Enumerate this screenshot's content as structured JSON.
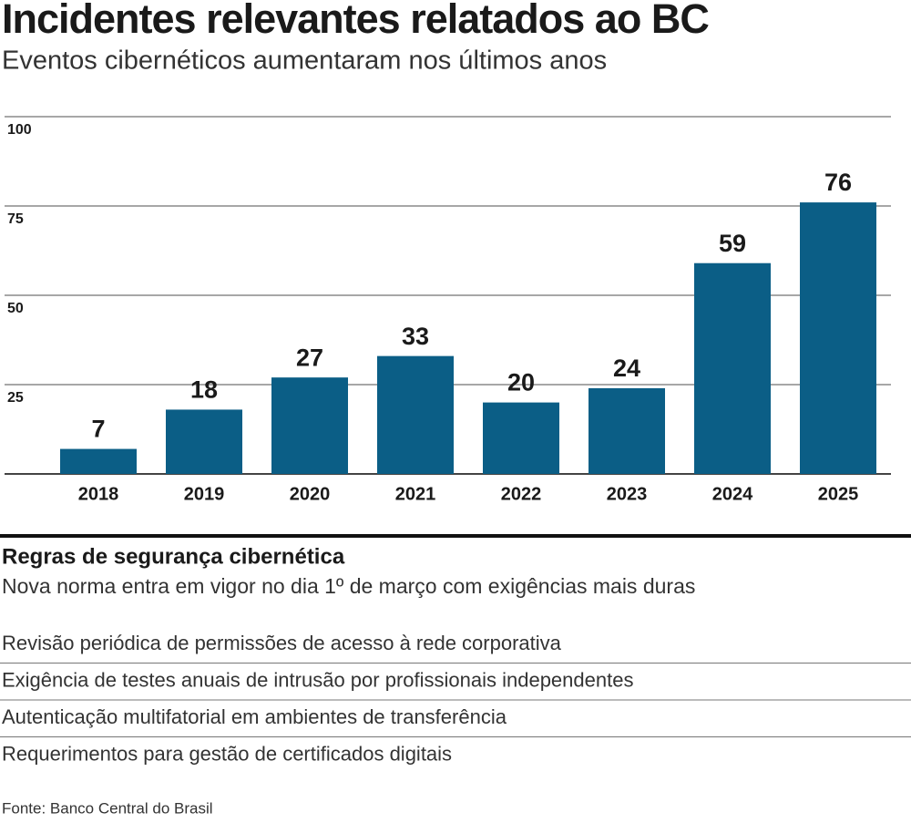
{
  "chart_data": {
    "type": "bar",
    "title": "Incidentes relevantes relatados ao BC",
    "subtitle": "Eventos cibernéticos aumentaram nos últimos anos",
    "categories": [
      "2018",
      "2019",
      "2020",
      "2021",
      "2022",
      "2023",
      "2024",
      "2025"
    ],
    "values": [
      7,
      18,
      27,
      33,
      20,
      24,
      59,
      76
    ],
    "color": "#0b5e86",
    "ylim": [
      0,
      100
    ],
    "yticks": [
      25,
      50,
      75,
      100
    ],
    "grid": true
  },
  "rules": {
    "title": "Regras de segurança cibernética",
    "subtitle": "Nova norma entra em vigor no dia 1º de março com exigências mais duras",
    "items": [
      "Revisão periódica de permissões de acesso à rede corporativa",
      "Exigência de testes anuais de intrusão por profissionais independentes",
      "Autenticação multifatorial em ambientes de transferência",
      "Requerimentos para gestão de certificados digitais"
    ]
  },
  "source": "Fonte: Banco Central do Brasil"
}
